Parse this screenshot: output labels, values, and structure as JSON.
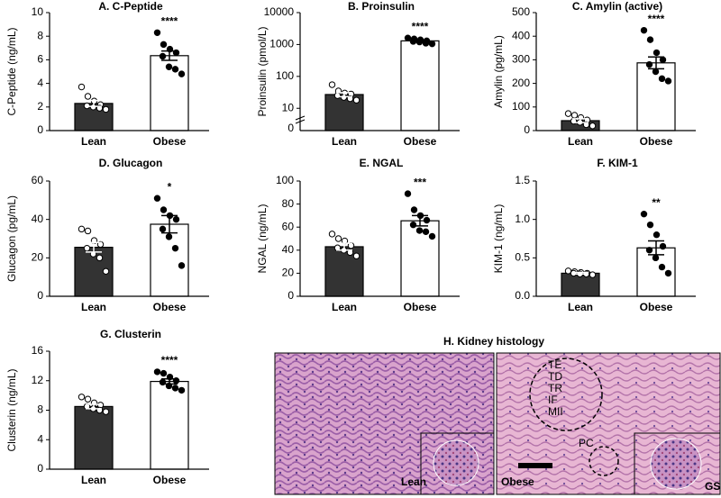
{
  "chart_data": [
    {
      "type": "bar",
      "title": "A. C-Peptide",
      "y_label": "C-Peptide (ng/mL)",
      "categories": [
        "Lean",
        "Obese"
      ],
      "values": [
        2.3,
        6.35
      ],
      "errors": [
        0.25,
        0.4
      ],
      "colors": [
        "#333333",
        "#ffffff"
      ],
      "points": [
        [
          3.7,
          2.9,
          2.5,
          2.2,
          2.1,
          2.0,
          1.9,
          1.8
        ],
        [
          8.3,
          7.3,
          6.9,
          6.6,
          6.3,
          5.4,
          5.2,
          4.8
        ]
      ],
      "significance": "****",
      "ylim": [
        0,
        10
      ],
      "yticks": [
        0,
        2,
        4,
        6,
        8,
        10
      ]
    },
    {
      "type": "bar",
      "title": "B. Proinsulin",
      "y_label": "Proinsulin (pmol/L)",
      "categories": [
        "Lean",
        "Obese"
      ],
      "values": [
        27,
        1300
      ],
      "errors": [
        4,
        100
      ],
      "colors": [
        "#333333",
        "#ffffff"
      ],
      "points": [
        [
          55,
          35,
          30,
          28,
          25,
          22,
          20,
          18
        ],
        [
          1600,
          1500,
          1400,
          1300,
          1250,
          1200,
          1100,
          1050
        ]
      ],
      "significance": "****",
      "log_scale": true,
      "zero_label": "0",
      "ylim": [
        2,
        10000
      ],
      "yticks": [
        10,
        100,
        1000,
        10000
      ]
    },
    {
      "type": "bar",
      "title": "C. Amylin (active)",
      "y_label": "Amylin (pg/mL)",
      "categories": [
        "Lean",
        "Obese"
      ],
      "values": [
        42,
        287
      ],
      "errors": [
        8,
        25
      ],
      "colors": [
        "#333333",
        "#ffffff"
      ],
      "points": [
        [
          72,
          65,
          55,
          45,
          40,
          35,
          25,
          20
        ],
        [
          425,
          385,
          330,
          300,
          280,
          250,
          220,
          210
        ]
      ],
      "significance": "****",
      "ylim": [
        0,
        500
      ],
      "yticks": [
        0,
        100,
        200,
        300,
        400,
        500
      ]
    },
    {
      "type": "bar",
      "title": "D. Glucagon",
      "y_label": "Glucagon (pg/mL)",
      "categories": [
        "Lean",
        "Obese"
      ],
      "values": [
        25.5,
        37.5
      ],
      "errors": [
        2.5,
        4.5
      ],
      "colors": [
        "#333333",
        "#ffffff"
      ],
      "points": [
        [
          35,
          34,
          29,
          27,
          25,
          22,
          20,
          13
        ],
        [
          51,
          45,
          42,
          40,
          35,
          31,
          25,
          16
        ]
      ],
      "significance": "*",
      "ylim": [
        0,
        60
      ],
      "yticks": [
        0,
        20,
        40,
        60
      ]
    },
    {
      "type": "bar",
      "title": "E. NGAL",
      "y_label": "NGAL (ng/mL)",
      "categories": [
        "Lean",
        "Obese"
      ],
      "values": [
        43,
        65.5
      ],
      "errors": [
        3,
        4.5
      ],
      "colors": [
        "#333333",
        "#ffffff"
      ],
      "points": [
        [
          54,
          50,
          48,
          44,
          42,
          40,
          38,
          35
        ],
        [
          89,
          75,
          70,
          66,
          62,
          57,
          56,
          52
        ]
      ],
      "significance": "***",
      "ylim": [
        0,
        100
      ],
      "yticks": [
        0,
        20,
        40,
        60,
        80,
        100
      ]
    },
    {
      "type": "bar",
      "title": "F. KIM-1",
      "y_label": "KIM-1 (ng/mL)",
      "categories": [
        "Lean",
        "Obese"
      ],
      "values": [
        0.3,
        0.63
      ],
      "errors": [
        0.01,
        0.09
      ],
      "colors": [
        "#333333",
        "#ffffff"
      ],
      "points": [
        [
          0.33,
          0.32,
          0.31,
          0.3,
          0.3,
          0.29,
          0.29,
          0.28
        ],
        [
          1.07,
          0.93,
          0.8,
          0.65,
          0.6,
          0.5,
          0.38,
          0.3
        ]
      ],
      "significance": "**",
      "ylim": [
        0,
        1.5
      ],
      "yticks": [
        {
          "value": 0,
          "label": "0.0"
        },
        0.5,
        {
          "value": 1,
          "label": "1.0"
        },
        1.5
      ]
    },
    {
      "type": "bar",
      "title": "G. Clusterin",
      "y_label": "Clusterin (ng/mL)",
      "categories": [
        "Lean",
        "Obese"
      ],
      "values": [
        8.5,
        11.9
      ],
      "errors": [
        0.3,
        0.35
      ],
      "colors": [
        "#333333",
        "#ffffff"
      ],
      "points": [
        [
          9.8,
          9.5,
          9.0,
          8.7,
          8.5,
          8.2,
          8.0,
          7.8
        ],
        [
          13.2,
          13.0,
          12.5,
          12.0,
          11.8,
          11.3,
          11.0,
          10.7
        ]
      ],
      "significance": "****",
      "ylim": [
        0,
        16
      ],
      "yticks": [
        0,
        4,
        8,
        12,
        16
      ]
    }
  ],
  "histology": {
    "title": "H. Kidney histology",
    "lean_label": "Lean",
    "obese_label": "Obese",
    "lesion_labels": [
      "TE",
      "TD",
      "TR",
      "IF",
      "MII"
    ],
    "pc_label": "PC",
    "gs_label": "GS"
  }
}
